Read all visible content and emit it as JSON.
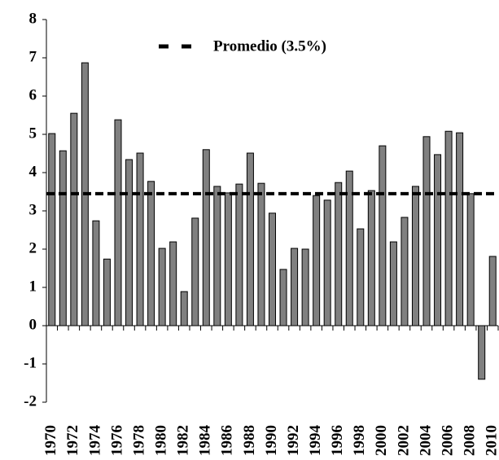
{
  "chart_data": {
    "type": "bar",
    "categories": [
      "1970",
      null,
      "1972",
      null,
      "1974",
      null,
      "1976",
      null,
      "1978",
      null,
      "1980",
      null,
      "1982",
      null,
      "1984",
      null,
      "1986",
      null,
      "1988",
      null,
      "1990",
      null,
      "1992",
      null,
      "1994",
      null,
      "1996",
      null,
      "1998",
      null,
      "2000",
      null,
      "2002",
      null,
      "2004",
      null,
      "2006",
      null,
      "2008",
      null,
      "2010"
    ],
    "values": [
      5.02,
      4.57,
      5.55,
      6.87,
      2.74,
      1.74,
      5.38,
      4.34,
      4.51,
      3.77,
      2.02,
      2.19,
      0.89,
      2.81,
      4.6,
      3.64,
      3.47,
      3.7,
      4.51,
      3.72,
      2.94,
      1.47,
      2.02,
      2.0,
      3.4,
      3.28,
      3.74,
      4.04,
      2.53,
      3.53,
      4.7,
      2.19,
      2.83,
      3.64,
      4.94,
      4.47,
      5.08,
      5.04,
      3.45,
      -1.4,
      1.81
    ],
    "color": "#808080",
    "ylim": [
      -2,
      8
    ],
    "yticks": [
      -2,
      -1,
      0,
      1,
      2,
      3,
      4,
      5,
      6,
      7,
      8
    ],
    "average": {
      "name": "Promedio (3.5%)",
      "value": 3.45,
      "color": "#000000"
    },
    "legend": "top"
  }
}
